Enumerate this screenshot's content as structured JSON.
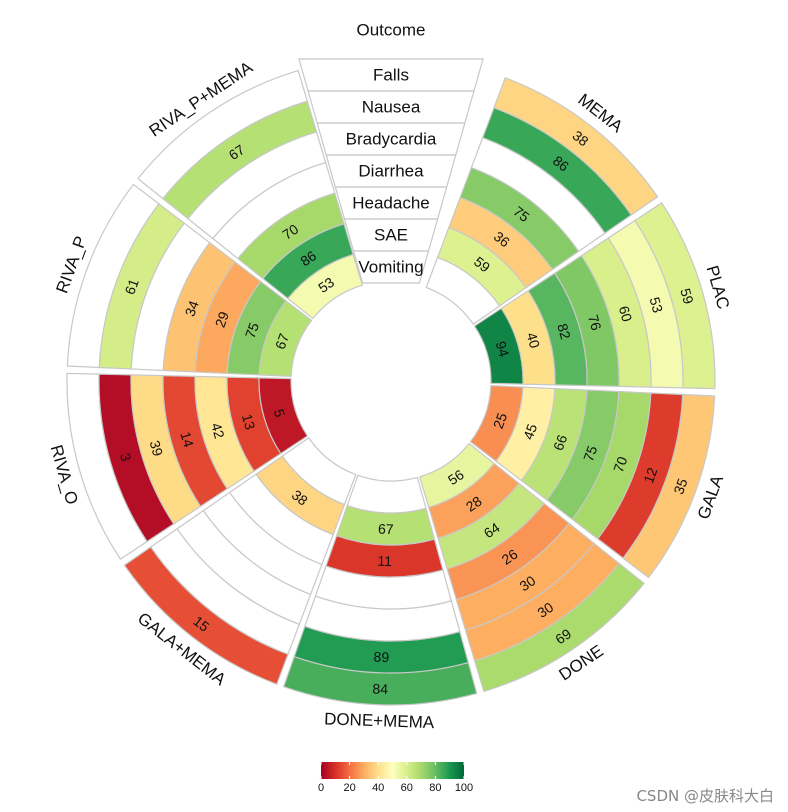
{
  "chart_data": {
    "type": "heatmap",
    "title": "",
    "center_title": "Outcome",
    "outcomes_outer_to_inner": [
      "Falls",
      "Nausea",
      "Bradycardia",
      "Diarrhea",
      "Headache",
      "SAE",
      "Vomiting"
    ],
    "treatments": [
      {
        "name": "MEMA",
        "values": [
          38,
          86,
          null,
          75,
          36,
          59,
          null
        ]
      },
      {
        "name": "PLAC",
        "values": [
          59,
          53,
          60,
          76,
          82,
          40,
          94
        ]
      },
      {
        "name": "GALA",
        "values": [
          35,
          12,
          70,
          75,
          66,
          45,
          25
        ]
      },
      {
        "name": "DONE",
        "values": [
          69,
          30,
          30,
          26,
          64,
          28,
          56
        ]
      },
      {
        "name": "DONE+MEMA",
        "values": [
          84,
          89,
          null,
          null,
          11,
          67,
          null
        ]
      },
      {
        "name": "GALA+MEMA",
        "values": [
          15,
          null,
          null,
          null,
          null,
          38,
          null
        ]
      },
      {
        "name": "RIVA_O",
        "values": [
          null,
          3,
          39,
          14,
          42,
          13,
          5
        ]
      },
      {
        "name": "RIVA_P",
        "values": [
          null,
          61,
          null,
          34,
          29,
          75,
          67
        ]
      },
      {
        "name": "RIVA_P+MEMA",
        "values": [
          null,
          67,
          null,
          null,
          70,
          86,
          53
        ]
      }
    ],
    "color_scale": {
      "name": "RdYlGn",
      "domain": [
        0,
        100
      ],
      "stops": [
        "#a50026",
        "#d73027",
        "#f46d43",
        "#fdae61",
        "#fee08b",
        "#ffffbf",
        "#d9ef8b",
        "#a6d96a",
        "#66bd63",
        "#1a9850",
        "#006837"
      ],
      "ticks": [
        0,
        20,
        40,
        60,
        80,
        100
      ]
    }
  },
  "watermark": "CSDN @皮肤科大白"
}
